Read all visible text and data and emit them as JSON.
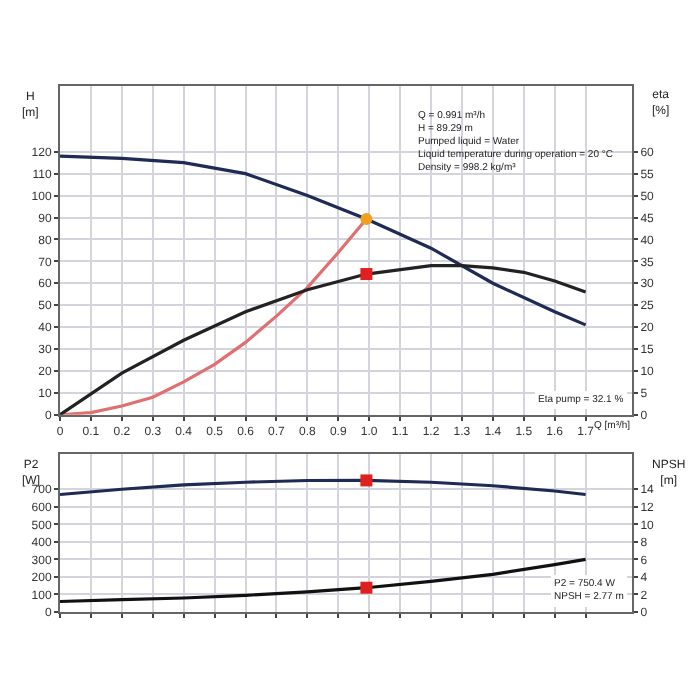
{
  "chart_data": [
    {
      "type": "line",
      "xlabel": "Q [m³/h]",
      "ylabel": "H [m]",
      "y2label": "eta [%]",
      "annotations": [
        "Q = 0.991 m³/h",
        "H = 89.29 m",
        "Pumped liquid = Water",
        "Liquid temperature during operation = 20 °C",
        "Density = 998.2 kg/m³",
        "Eta pump = 32.1 %"
      ],
      "xlim": [
        0,
        1.85
      ],
      "xticks": [
        0,
        0.1,
        0.2,
        0.3,
        0.4,
        0.5,
        0.6,
        0.7,
        0.8,
        0.9,
        {
          "value": 1,
          "label": "1.0"
        },
        1.1,
        1.2,
        1.3,
        1.4,
        1.5,
        1.6,
        1.7
      ],
      "ylim": [
        0,
        150
      ],
      "yticks": [
        0,
        10,
        20,
        30,
        40,
        50,
        60,
        70,
        80,
        90,
        100,
        110,
        120
      ],
      "y2lim": [
        0,
        75
      ],
      "y2ticks": [
        0,
        5,
        10,
        15,
        20,
        25,
        30,
        35,
        40,
        45,
        50,
        55,
        60
      ],
      "grid": true,
      "marker": "none",
      "line_style": "solid",
      "series": [
        {
          "color": "#1f2a55",
          "x": [
            0,
            0.2,
            0.4,
            0.6,
            0.8,
            0.991,
            1.2,
            1.4,
            1.6,
            1.7
          ],
          "values": [
            118,
            117,
            115,
            110,
            100,
            89.29,
            76,
            60,
            47,
            41
          ]
        },
        {
          "color": "#e07070",
          "x": [
            0,
            0.1,
            0.2,
            0.3,
            0.4,
            0.5,
            0.6,
            0.7,
            0.8,
            0.9,
            0.991
          ],
          "values": [
            0,
            1,
            4,
            8,
            15,
            23,
            33,
            45,
            58,
            74,
            89.29
          ]
        },
        {
          "color": "#222222",
          "axis": "y2",
          "x": [
            0,
            0.2,
            0.4,
            0.6,
            0.8,
            0.991,
            1.2,
            1.3,
            1.4,
            1.5,
            1.6,
            1.7
          ],
          "values": [
            0,
            9.5,
            17,
            23.5,
            28.5,
            32.1,
            34,
            34,
            33.5,
            32.5,
            30.5,
            28
          ]
        },
        {
          "type": "scatter",
          "marker": "circle",
          "color": "#f0a020",
          "x": [
            0.991
          ],
          "values": [
            89.29
          ]
        },
        {
          "type": "scatter",
          "marker": "square",
          "color": "#e02020",
          "axis": "y2",
          "x": [
            0.991
          ],
          "values": [
            32.1
          ]
        }
      ]
    },
    {
      "type": "line",
      "ylabel": "P2 [W]",
      "y2label": "NPSH [m]",
      "annotations": [
        "P2 = 750.4 W",
        "NPSH = 2.77 m"
      ],
      "xlim": [
        0,
        1.85
      ],
      "xticks": [
        0,
        0.1,
        0.2,
        0.3,
        0.4,
        0.5,
        0.6,
        0.7,
        0.8,
        0.9,
        1,
        1.1,
        1.2,
        1.3,
        1.4,
        1.5,
        1.6,
        1.7
      ],
      "ylim": [
        0,
        900
      ],
      "yticks": [
        0,
        100,
        200,
        300,
        400,
        500,
        600,
        700
      ],
      "y2lim": [
        0,
        18
      ],
      "y2ticks": [
        0,
        2,
        4,
        6,
        8,
        10,
        12,
        14
      ],
      "tick_labels": "y",
      "grid": true,
      "marker": "none",
      "line_style": "solid",
      "series": [
        {
          "color": "#1f2a55",
          "x": [
            0,
            0.2,
            0.4,
            0.6,
            0.8,
            0.991,
            1.2,
            1.4,
            1.6,
            1.7
          ],
          "values": [
            670,
            700,
            725,
            740,
            750,
            750.4,
            740,
            720,
            690,
            670
          ]
        },
        {
          "color": "#111111",
          "axis": "y2",
          "x": [
            0,
            0.2,
            0.4,
            0.6,
            0.8,
            0.991,
            1.2,
            1.4,
            1.6,
            1.7
          ],
          "values": [
            1.2,
            1.4,
            1.6,
            1.9,
            2.3,
            2.77,
            3.5,
            4.3,
            5.4,
            6.0
          ]
        },
        {
          "type": "scatter",
          "marker": "square",
          "color": "#e02020",
          "x": [
            0.991
          ],
          "values": [
            750.4
          ]
        },
        {
          "type": "scatter",
          "marker": "square",
          "color": "#e02020",
          "axis": "y2",
          "x": [
            0.991
          ],
          "values": [
            2.77
          ]
        }
      ]
    }
  ]
}
